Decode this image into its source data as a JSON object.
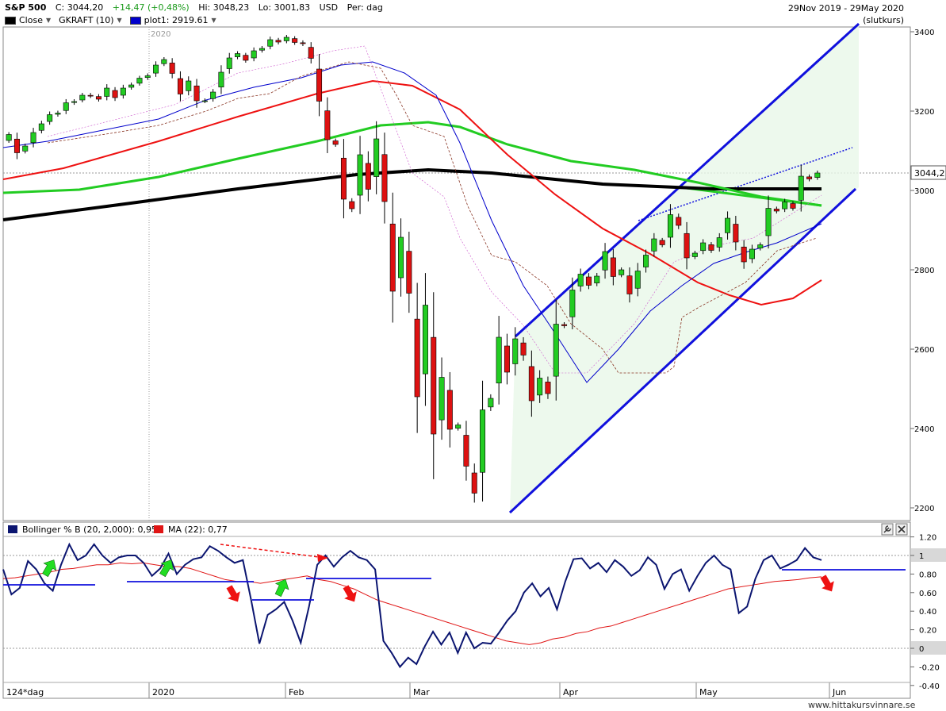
{
  "header": {
    "symbol": "S&P 500",
    "close": "C: 3044,20",
    "change": "+14,47 (+0,48%)",
    "high": "Hi: 3048,23",
    "low": "Lo: 3001,83",
    "currency": "USD",
    "period": "Per: dag",
    "date_range": "29Nov 2019 - 29May 2020",
    "price_type": "(slutkurs)",
    "legend": [
      {
        "label": "Close",
        "color": "#000000"
      },
      {
        "label": "GKRAFT (10)",
        "color": ""
      },
      {
        "label": "plot1: 2919.61",
        "color": "#0000cc"
      }
    ]
  },
  "main_chart": {
    "year_label": "2020",
    "price_ticks": [
      "3400",
      "3200",
      "3000",
      "2800",
      "2600",
      "2400",
      "2200"
    ],
    "last_price_label": "3044,2",
    "colors": {
      "up": "#22cc22",
      "down": "#dd1111",
      "channel": "#1010dd",
      "ma_black": "#000000",
      "ma_green": "#22cc22",
      "ma_red": "#ee1111"
    }
  },
  "chart_data": [
    {
      "type": "candlestick",
      "title": "S&P 500",
      "x_labels": [
        "2020",
        "Feb",
        "Mar",
        "Apr",
        "May",
        "Jun"
      ],
      "ylim": [
        2170,
        3420
      ],
      "y_ticks": [
        2200,
        2400,
        2600,
        2800,
        3000,
        3200,
        3400
      ],
      "closes": [
        3141,
        3095,
        3112,
        3146,
        3168,
        3191,
        3195,
        3221,
        3224,
        3240,
        3239,
        3230,
        3258,
        3234,
        3258,
        3266,
        3283,
        3289,
        3316,
        3330,
        3295,
        3243,
        3276,
        3226,
        3226,
        3248,
        3298,
        3334,
        3345,
        3328,
        3352,
        3358,
        3380,
        3374,
        3386,
        3373,
        3370,
        3333,
        3225,
        3128,
        3116,
        2978,
        2954,
        3090,
        3003,
        3130,
        2972,
        2746,
        2882,
        2741,
        2480,
        2711,
        2386,
        2529,
        2398,
        2409,
        2305,
        2237,
        2447,
        2476,
        2630,
        2542,
        2626,
        2585,
        2470,
        2527,
        2488,
        2663,
        2659,
        2749,
        2789,
        2761,
        2784,
        2846,
        2783,
        2800,
        2739,
        2797,
        2837,
        2878,
        2863,
        2939,
        2912,
        2830,
        2842,
        2868,
        2849,
        2881,
        2930,
        2870,
        2820,
        2852,
        2863,
        2955,
        2948,
        2971,
        2955,
        3036,
        3029,
        3044
      ],
      "ma_200_last": 3000,
      "ma_50_last": 2960,
      "ma_20_last": 2919.61
    },
    {
      "type": "line",
      "title": "Bollinger % B (20, 2,000): 0,95",
      "series": [
        {
          "name": "Bollinger % B (20, 2,000): 0,95",
          "last": 0.95
        },
        {
          "name": "MA (22): 0,77",
          "last": 0.77
        }
      ],
      "ylim": [
        -0.45,
        1.25
      ],
      "y_ticks": [
        -0.4,
        -0.2,
        0,
        0.2,
        0.4,
        0.6,
        0.8,
        1,
        1.2
      ]
    }
  ],
  "indicator": {
    "legend": [
      {
        "label": "Bollinger % B (20, 2,000): 0,95",
        "color": "#0b1570"
      },
      {
        "label": "MA (22): 0,77",
        "color": "#e01515"
      }
    ],
    "ticks": [
      "1.20",
      "1",
      "0.80",
      "0.60",
      "0.40",
      "0.20",
      "0",
      "-0.20",
      "-0.40"
    ],
    "highlight_ticks": [
      "1",
      "0"
    ]
  },
  "x_axis": {
    "period_label": "124*dag",
    "months": [
      "2020",
      "Feb",
      "Mar",
      "Apr",
      "May",
      "Jun"
    ]
  },
  "footer": {
    "watermark": "www.hittakursvinnare.se"
  }
}
